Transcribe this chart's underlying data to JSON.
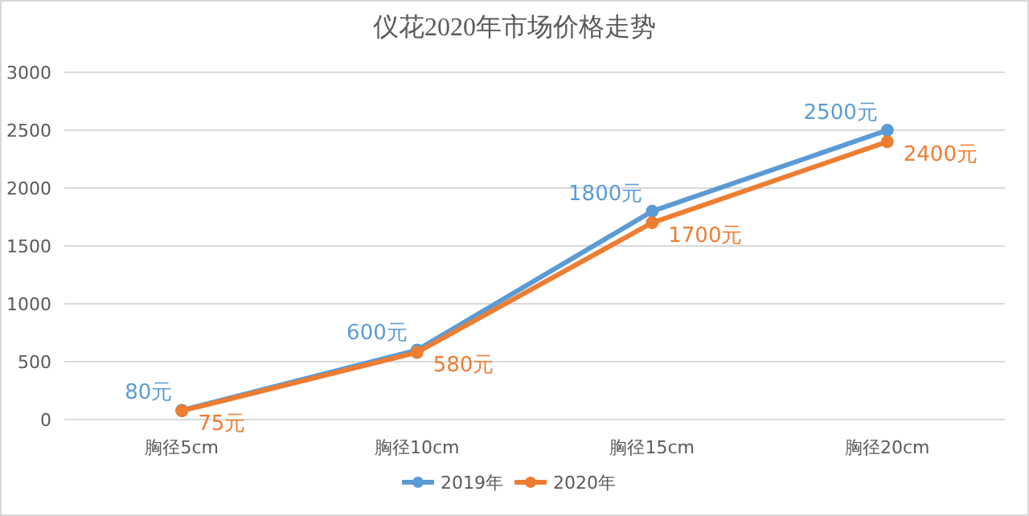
{
  "chart_data": {
    "type": "line",
    "title": "仪花2020年市场价格走势",
    "categories": [
      "胸径5cm",
      "胸径10cm",
      "胸径15cm",
      "胸径20cm"
    ],
    "series": [
      {
        "name": "2019年",
        "color": "#5b9bd5",
        "values": [
          80,
          600,
          1800,
          2500
        ],
        "value_labels": [
          "80元",
          "600元",
          "1800元",
          "2500元"
        ]
      },
      {
        "name": "2020年",
        "color": "#ed7d31",
        "values": [
          75,
          580,
          1700,
          2400
        ],
        "value_labels": [
          "75元",
          "580元",
          "1700元",
          "2400元"
        ]
      }
    ],
    "ylim": [
      0,
      3000
    ],
    "yticks": [
      0,
      500,
      1000,
      1500,
      2000,
      2500,
      3000
    ],
    "grid": "y",
    "legend": "bottom",
    "marker": "circle",
    "line_style": "solid"
  }
}
